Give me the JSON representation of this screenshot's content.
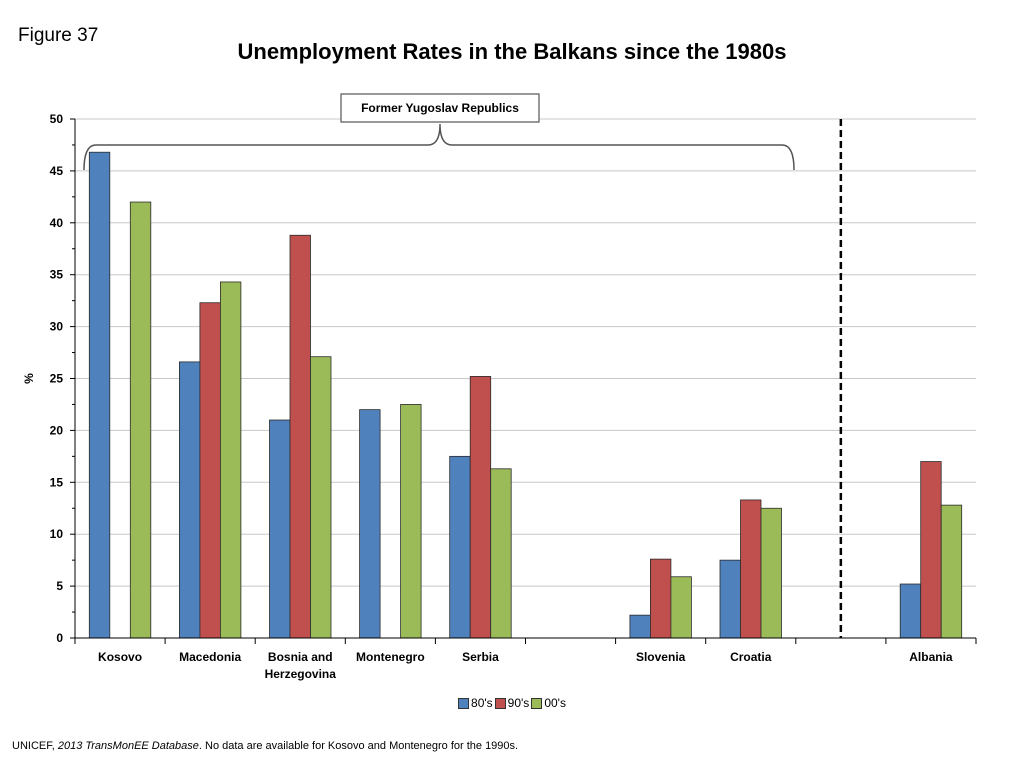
{
  "figure_label": "Figure 37",
  "chart_data": {
    "type": "bar",
    "title": "Unemployment Rates in the Balkans since the 1980s",
    "xlabel": "",
    "ylabel": "%",
    "ylim": [
      0,
      50
    ],
    "yticks": [
      0,
      5,
      10,
      15,
      20,
      25,
      30,
      35,
      40,
      45,
      50
    ],
    "grid": true,
    "legend_position": "bottom",
    "categories": [
      "Kosovo",
      "Macedonia",
      "Bosnia and Herzegovina",
      "Montenegro",
      "Serbia",
      "",
      "Slovenia",
      "Croatia",
      "",
      "Albania"
    ],
    "category_lines": [
      [
        "Kosovo"
      ],
      [
        "Macedonia"
      ],
      [
        "Bosnia and",
        "Herzegovina"
      ],
      [
        "Montenegro"
      ],
      [
        "Serbia"
      ],
      [],
      [
        "Slovenia"
      ],
      [
        "Croatia"
      ],
      [],
      [
        "Albania"
      ]
    ],
    "series": [
      {
        "name": "80's",
        "color": "#4f81bd",
        "values": [
          46.8,
          26.6,
          21.0,
          22.0,
          17.5,
          null,
          2.2,
          7.5,
          null,
          5.2
        ]
      },
      {
        "name": "90's",
        "color": "#c0504d",
        "values": [
          null,
          32.3,
          38.8,
          null,
          25.2,
          null,
          7.6,
          13.3,
          null,
          17.0
        ]
      },
      {
        "name": "00's",
        "color": "#9bbb59",
        "values": [
          42.0,
          34.3,
          27.1,
          22.5,
          16.3,
          null,
          5.9,
          12.5,
          null,
          12.8
        ]
      }
    ],
    "annotation": "Former Yugoslav Republics",
    "divider_after_category_index": 8
  },
  "footnote": {
    "prefix": "UNICEF, ",
    "italic": "2013 TransMonEE Database",
    "suffix": ". No data are available for Kosovo and Montenegro for the 1990s."
  }
}
